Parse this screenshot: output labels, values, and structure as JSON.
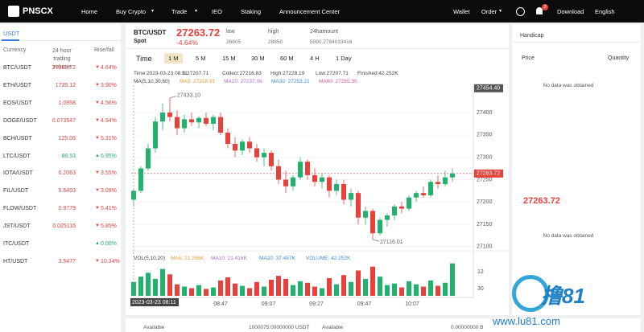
{
  "nav": {
    "logo": "PNSCX",
    "items": [
      "Home",
      "Buy Crypto",
      "Trade",
      "IEO",
      "Staking",
      "Announcement Center"
    ],
    "right": [
      "Wallet",
      "Order",
      "Download",
      "English"
    ],
    "badge": "2"
  },
  "markets": {
    "tab": "USDT",
    "headers": [
      "Currency",
      "24 hour trading volume",
      "Rise/fall"
    ],
    "rows": [
      {
        "pair": "BTC/USDT",
        "price": "27263.72",
        "change": "4.64%",
        "dir": "down"
      },
      {
        "pair": "ETH/USDT",
        "price": "1735.12",
        "change": "3.90%",
        "dir": "down"
      },
      {
        "pair": "EOS/USDT",
        "price": "1.0958",
        "change": "4.56%",
        "dir": "down"
      },
      {
        "pair": "DOGE/USDT",
        "price": "0.073547",
        "change": "4.94%",
        "dir": "down"
      },
      {
        "pair": "BCH/USDT",
        "price": "125.06",
        "change": "5.31%",
        "dir": "down"
      },
      {
        "pair": "LTC/USDT",
        "price": "86.53",
        "change": "6.95%",
        "dir": "up"
      },
      {
        "pair": "IOTA/USDT",
        "price": "0.2063",
        "change": "3.55%",
        "dir": "down"
      },
      {
        "pair": "FIL/USDT",
        "price": "5.6403",
        "change": "3.09%",
        "dir": "down"
      },
      {
        "pair": "FLOW/USDT",
        "price": "0.9779",
        "change": "5.41%",
        "dir": "down"
      },
      {
        "pair": "JST/USDT",
        "price": "0.025116",
        "change": "5.85%",
        "dir": "down"
      },
      {
        "pair": "ITC/USDT",
        "price": null,
        "change": "0.00%",
        "dir": "up"
      },
      {
        "pair": "HT/USDT",
        "price": "3.5477",
        "change": "10.34%",
        "dir": "down"
      }
    ]
  },
  "ticker": {
    "pair": "BTC/USDT",
    "market": "Spot",
    "price": "27263.72",
    "change": "-4.64%",
    "low_label": "low",
    "low": "26605",
    "high_label": "high",
    "high": "28850",
    "amount_label": "24hamount",
    "amount": "5090.2784033416"
  },
  "toolbar": {
    "label": "Time",
    "intervals": [
      "1 M",
      "5 M",
      "15 M",
      "30 M",
      "60 M",
      "4 H",
      "1 Day"
    ],
    "active": 0
  },
  "info": [
    "Time:2023-03-23 08:11",
    "S:27207.71",
    "Collect:27216.83",
    "High:27228.19",
    "Low:27207.71",
    "Finished:42.252K"
  ],
  "ma_legend": {
    "label": "MA(5,10,30,60)",
    "items": [
      {
        "text": "MA5: 27218.91",
        "color": "#e8a03b"
      },
      {
        "text": "MA10: 27237.06",
        "color": "#b46bd2"
      },
      {
        "text": "MA30: 27253.21",
        "color": "#3b8fe0"
      },
      {
        "text": "MA60: 27265.30",
        "color": "#e05a8a"
      }
    ]
  },
  "vol_legend": {
    "label": "VOL(5,10,20)",
    "items": [
      {
        "text": "MA5: 21.286K",
        "color": "#e8a03b"
      },
      {
        "text": "MA10: 21.416K",
        "color": "#b46bd2"
      },
      {
        "text": "MA20: 37.457K",
        "color": "#3b8fe0"
      },
      {
        "text": "VOLUME: 42.252K",
        "color": "#3b8fe0"
      }
    ]
  },
  "chart": {
    "type": "candlestick",
    "up_color": "#21b26d",
    "down_color": "#e8413c",
    "ylim": [
      27080,
      27472
    ],
    "yticks": [
      27100,
      27150,
      27200,
      27250,
      27300,
      27350,
      27400
    ],
    "grid": true,
    "top_price": "27454.40",
    "last_price": "27263.72",
    "max_label": "27433.10",
    "min_label": "27116.01",
    "xticks": [
      "08:47",
      "09:07",
      "09:27",
      "09:47",
      "10:07"
    ],
    "crosshair_time": "2023-03-23 08:11",
    "open": [
      27205,
      27225,
      27275,
      27320,
      27380,
      27400,
      27390,
      27365,
      27385,
      27378,
      27388,
      27375,
      27390,
      27355,
      27330,
      27315,
      27335,
      27320,
      27300,
      27310,
      27280,
      27250,
      27235,
      27255,
      27290,
      27260,
      27245,
      27255,
      27225,
      27240,
      27205,
      27220,
      27165,
      27180,
      27130,
      27160,
      27170,
      27190,
      27185,
      27210,
      27220,
      27215,
      27245,
      27240,
      27255
    ],
    "high": [
      27230,
      27280,
      27330,
      27390,
      27420,
      27433,
      27405,
      27395,
      27400,
      27392,
      27400,
      27395,
      27400,
      27365,
      27345,
      27340,
      27345,
      27330,
      27320,
      27315,
      27295,
      27270,
      27260,
      27300,
      27295,
      27275,
      27265,
      27260,
      27250,
      27250,
      27230,
      27225,
      27190,
      27185,
      27165,
      27175,
      27195,
      27200,
      27215,
      27225,
      27235,
      27250,
      27260,
      27270,
      27275
    ],
    "low": [
      27190,
      27220,
      27270,
      27310,
      27360,
      27380,
      27350,
      27355,
      27370,
      27365,
      27370,
      27360,
      27350,
      27320,
      27300,
      27305,
      27310,
      27290,
      27280,
      27270,
      27240,
      27220,
      27225,
      27250,
      27250,
      27235,
      27230,
      27210,
      27215,
      27195,
      27190,
      27150,
      27150,
      27116,
      27125,
      27145,
      27160,
      27175,
      27180,
      27200,
      27210,
      27210,
      27230,
      27235,
      27245
    ],
    "close": [
      27225,
      27275,
      27320,
      27380,
      27400,
      27390,
      27365,
      27385,
      27378,
      27388,
      27375,
      27390,
      27355,
      27330,
      27315,
      27335,
      27320,
      27300,
      27310,
      27280,
      27250,
      27235,
      27255,
      27290,
      27260,
      27245,
      27255,
      27225,
      27240,
      27205,
      27220,
      27165,
      27180,
      27130,
      27160,
      27170,
      27190,
      27185,
      27210,
      27220,
      27215,
      27245,
      27240,
      27255,
      27263.72
    ],
    "volume": [
      18,
      25,
      30,
      22,
      35,
      28,
      15,
      12,
      10,
      14,
      9,
      11,
      20,
      24,
      16,
      13,
      10,
      18,
      12,
      21,
      26,
      22,
      14,
      19,
      17,
      12,
      10,
      23,
      15,
      27,
      18,
      33,
      22,
      38,
      25,
      14,
      16,
      11,
      19,
      15,
      12,
      20,
      13,
      17,
      42.252
    ],
    "vlim": [
      0,
      45
    ],
    "vol_axis_labels": [
      "12",
      "30"
    ]
  },
  "orderbook": {
    "title": "Handicap",
    "headers": [
      "Price",
      "Quantity"
    ],
    "empty_top": "No data was obtained",
    "mid_price": "27263.72",
    "empty_bottom": "No data was obtained"
  },
  "footer": [
    "Available",
    "1000075.00000000 USDT",
    "Available",
    "0.00000000 B"
  ],
  "watermark": {
    "logo": "撸81",
    "url": "www.lu81.com"
  }
}
